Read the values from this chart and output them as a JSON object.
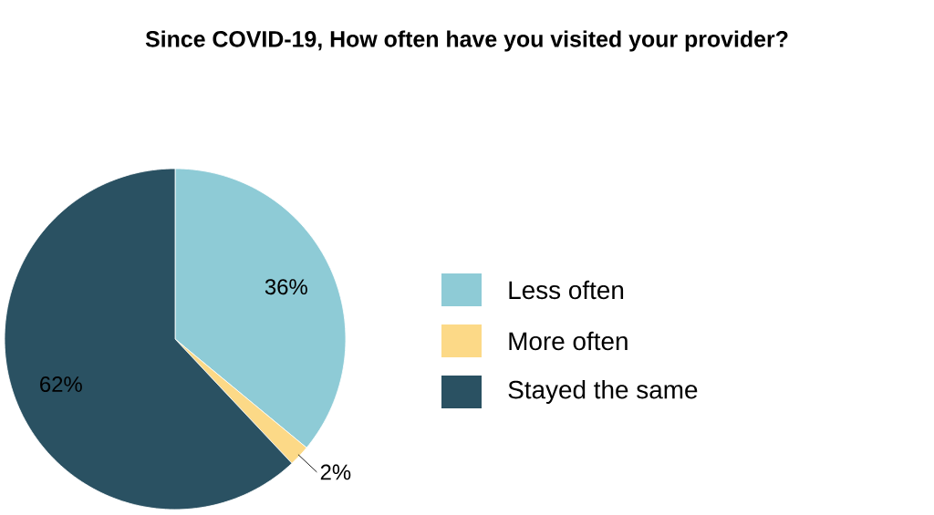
{
  "chart_data": {
    "type": "pie",
    "title": "Since COVID-19, How often have you visited your provider?",
    "categories": [
      "Less often",
      "More often",
      "Stayed the same"
    ],
    "values": [
      36,
      2,
      62
    ],
    "colors": [
      "#8ecbd6",
      "#fcd987",
      "#2a5162"
    ],
    "value_labels": [
      "36%",
      "2%",
      "62%"
    ],
    "legend": "right"
  }
}
